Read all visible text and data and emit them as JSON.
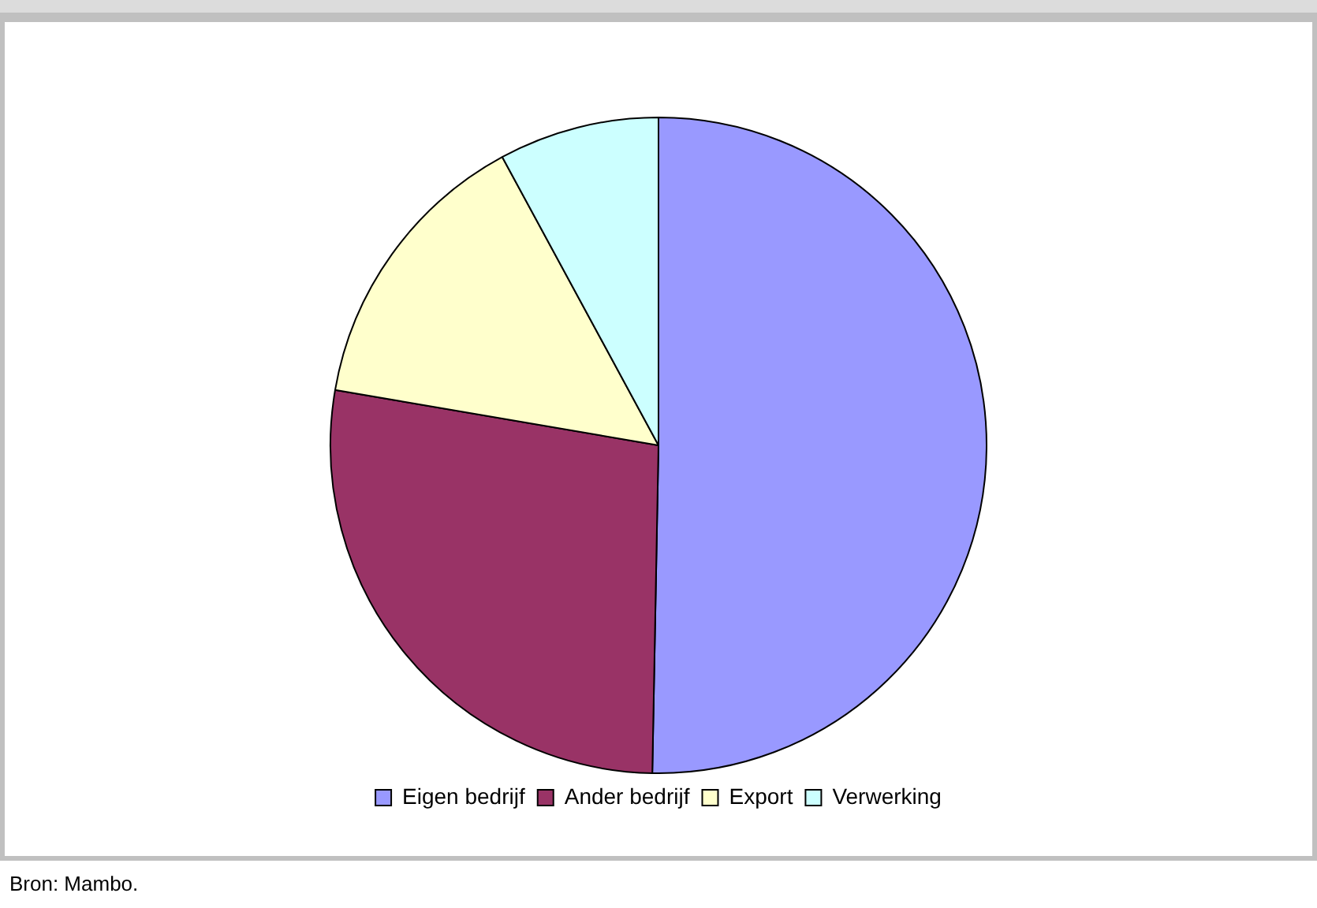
{
  "chart_data": {
    "type": "pie",
    "categories": [
      "Eigen bedrijf",
      "Ander bedrijf",
      "Export",
      "Verwerking"
    ],
    "values": [
      50.3,
      27.4,
      14.4,
      7.9
    ],
    "colors": [
      "#9999ff",
      "#993366",
      "#ffffcc",
      "#ccffff"
    ],
    "legend": "bottom",
    "annotations": [
      "Bron: Mambo."
    ]
  }
}
